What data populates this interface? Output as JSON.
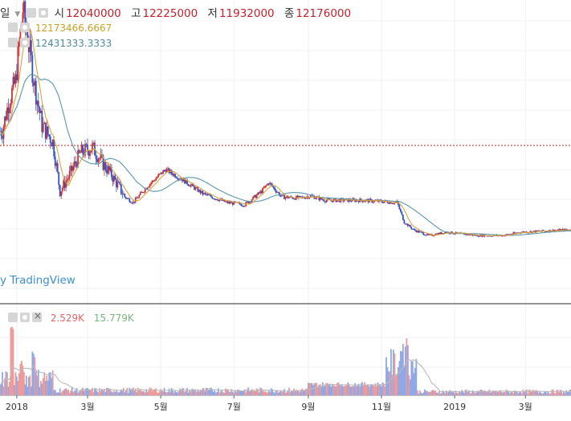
{
  "header": {
    "period_label": "일",
    "open_label": "시",
    "open": "12040000",
    "high_label": "고",
    "high": "12225000",
    "low_label": "저",
    "low": "11932000",
    "close_label": "종",
    "close": "12176000"
  },
  "ma_legend": [
    {
      "value": "12173466.6667",
      "color": "#c9a227"
    },
    {
      "value": "12431333.3333",
      "color": "#4f8aa3"
    }
  ],
  "volume_legend": [
    {
      "value": "2.529K",
      "color": "#e06666"
    },
    {
      "value": "15.779K",
      "color": "#79b47c"
    }
  ],
  "watermark": "y TradingView",
  "colors": {
    "up": "#d0312d",
    "down": "#2f54c8",
    "ma_short": "#d9a441",
    "ma_long": "#5b96ad",
    "vol_up": "#ef9a9a",
    "vol_down": "#90a9e6",
    "vol_ma": "#bbbbbb"
  },
  "chart_data": {
    "type": "candlestick",
    "x_axis": {
      "ticks": [
        "2018",
        "3월",
        "5월",
        "7월",
        "9월",
        "11월",
        "2019",
        "3월"
      ]
    },
    "price_path": [
      {
        "x": "2017-12-20",
        "y": 13500000
      },
      {
        "x": "2017-12-25",
        "y": 16000000
      },
      {
        "x": "2017-12-31",
        "y": 18000000
      },
      {
        "x": "2018-01-06",
        "y": 24500000
      },
      {
        "x": "2018-01-10",
        "y": 22000000
      },
      {
        "x": "2018-01-16",
        "y": 17500000
      },
      {
        "x": "2018-01-22",
        "y": 14000000
      },
      {
        "x": "2018-01-31",
        "y": 12500000
      },
      {
        "x": "2018-02-06",
        "y": 8000000
      },
      {
        "x": "2018-02-14",
        "y": 9500000
      },
      {
        "x": "2018-02-23",
        "y": 11500000
      },
      {
        "x": "2018-03-05",
        "y": 12000000
      },
      {
        "x": "2018-03-14",
        "y": 10500000
      },
      {
        "x": "2018-03-21",
        "y": 9500000
      },
      {
        "x": "2018-04-01",
        "y": 7500000
      },
      {
        "x": "2018-04-08",
        "y": 7000000
      },
      {
        "x": "2018-04-20",
        "y": 8500000
      },
      {
        "x": "2018-05-05",
        "y": 10000000
      },
      {
        "x": "2018-05-20",
        "y": 9000000
      },
      {
        "x": "2018-06-05",
        "y": 7800000
      },
      {
        "x": "2018-06-25",
        "y": 7000000
      },
      {
        "x": "2018-07-10",
        "y": 6800000
      },
      {
        "x": "2018-07-24",
        "y": 8000000
      },
      {
        "x": "2018-07-30",
        "y": 8800000
      },
      {
        "x": "2018-08-10",
        "y": 7500000
      },
      {
        "x": "2018-08-25",
        "y": 7400000
      },
      {
        "x": "2018-09-03",
        "y": 7600000
      },
      {
        "x": "2018-09-15",
        "y": 7200000
      },
      {
        "x": "2018-10-15",
        "y": 7200000
      },
      {
        "x": "2018-11-14",
        "y": 7000000
      },
      {
        "x": "2018-11-20",
        "y": 5200000
      },
      {
        "x": "2018-11-28",
        "y": 4500000
      },
      {
        "x": "2018-12-10",
        "y": 4000000
      },
      {
        "x": "2018-12-25",
        "y": 4300000
      },
      {
        "x": "2019-01-20",
        "y": 4000000
      },
      {
        "x": "2019-02-10",
        "y": 4000000
      },
      {
        "x": "2019-02-25",
        "y": 4300000
      },
      {
        "x": "2019-03-15",
        "y": 4400000
      },
      {
        "x": "2019-04-01",
        "y": 4500000
      }
    ],
    "reference_line": 12176000,
    "moving_averages": [
      {
        "value": "12173466.6667"
      },
      {
        "value": "12431333.3333"
      }
    ],
    "volume": {
      "type": "bar",
      "series": [
        {
          "value": "2.529K"
        },
        {
          "value": "15.779K"
        }
      ],
      "spikes": [
        {
          "x": "2017-12-28",
          "y": 20
        },
        {
          "x": "2018-01-05",
          "y": 9
        },
        {
          "x": "2018-01-15",
          "y": 12
        },
        {
          "x": "2018-11-18",
          "y": 14
        },
        {
          "x": "2018-11-22",
          "y": 15
        }
      ]
    }
  }
}
